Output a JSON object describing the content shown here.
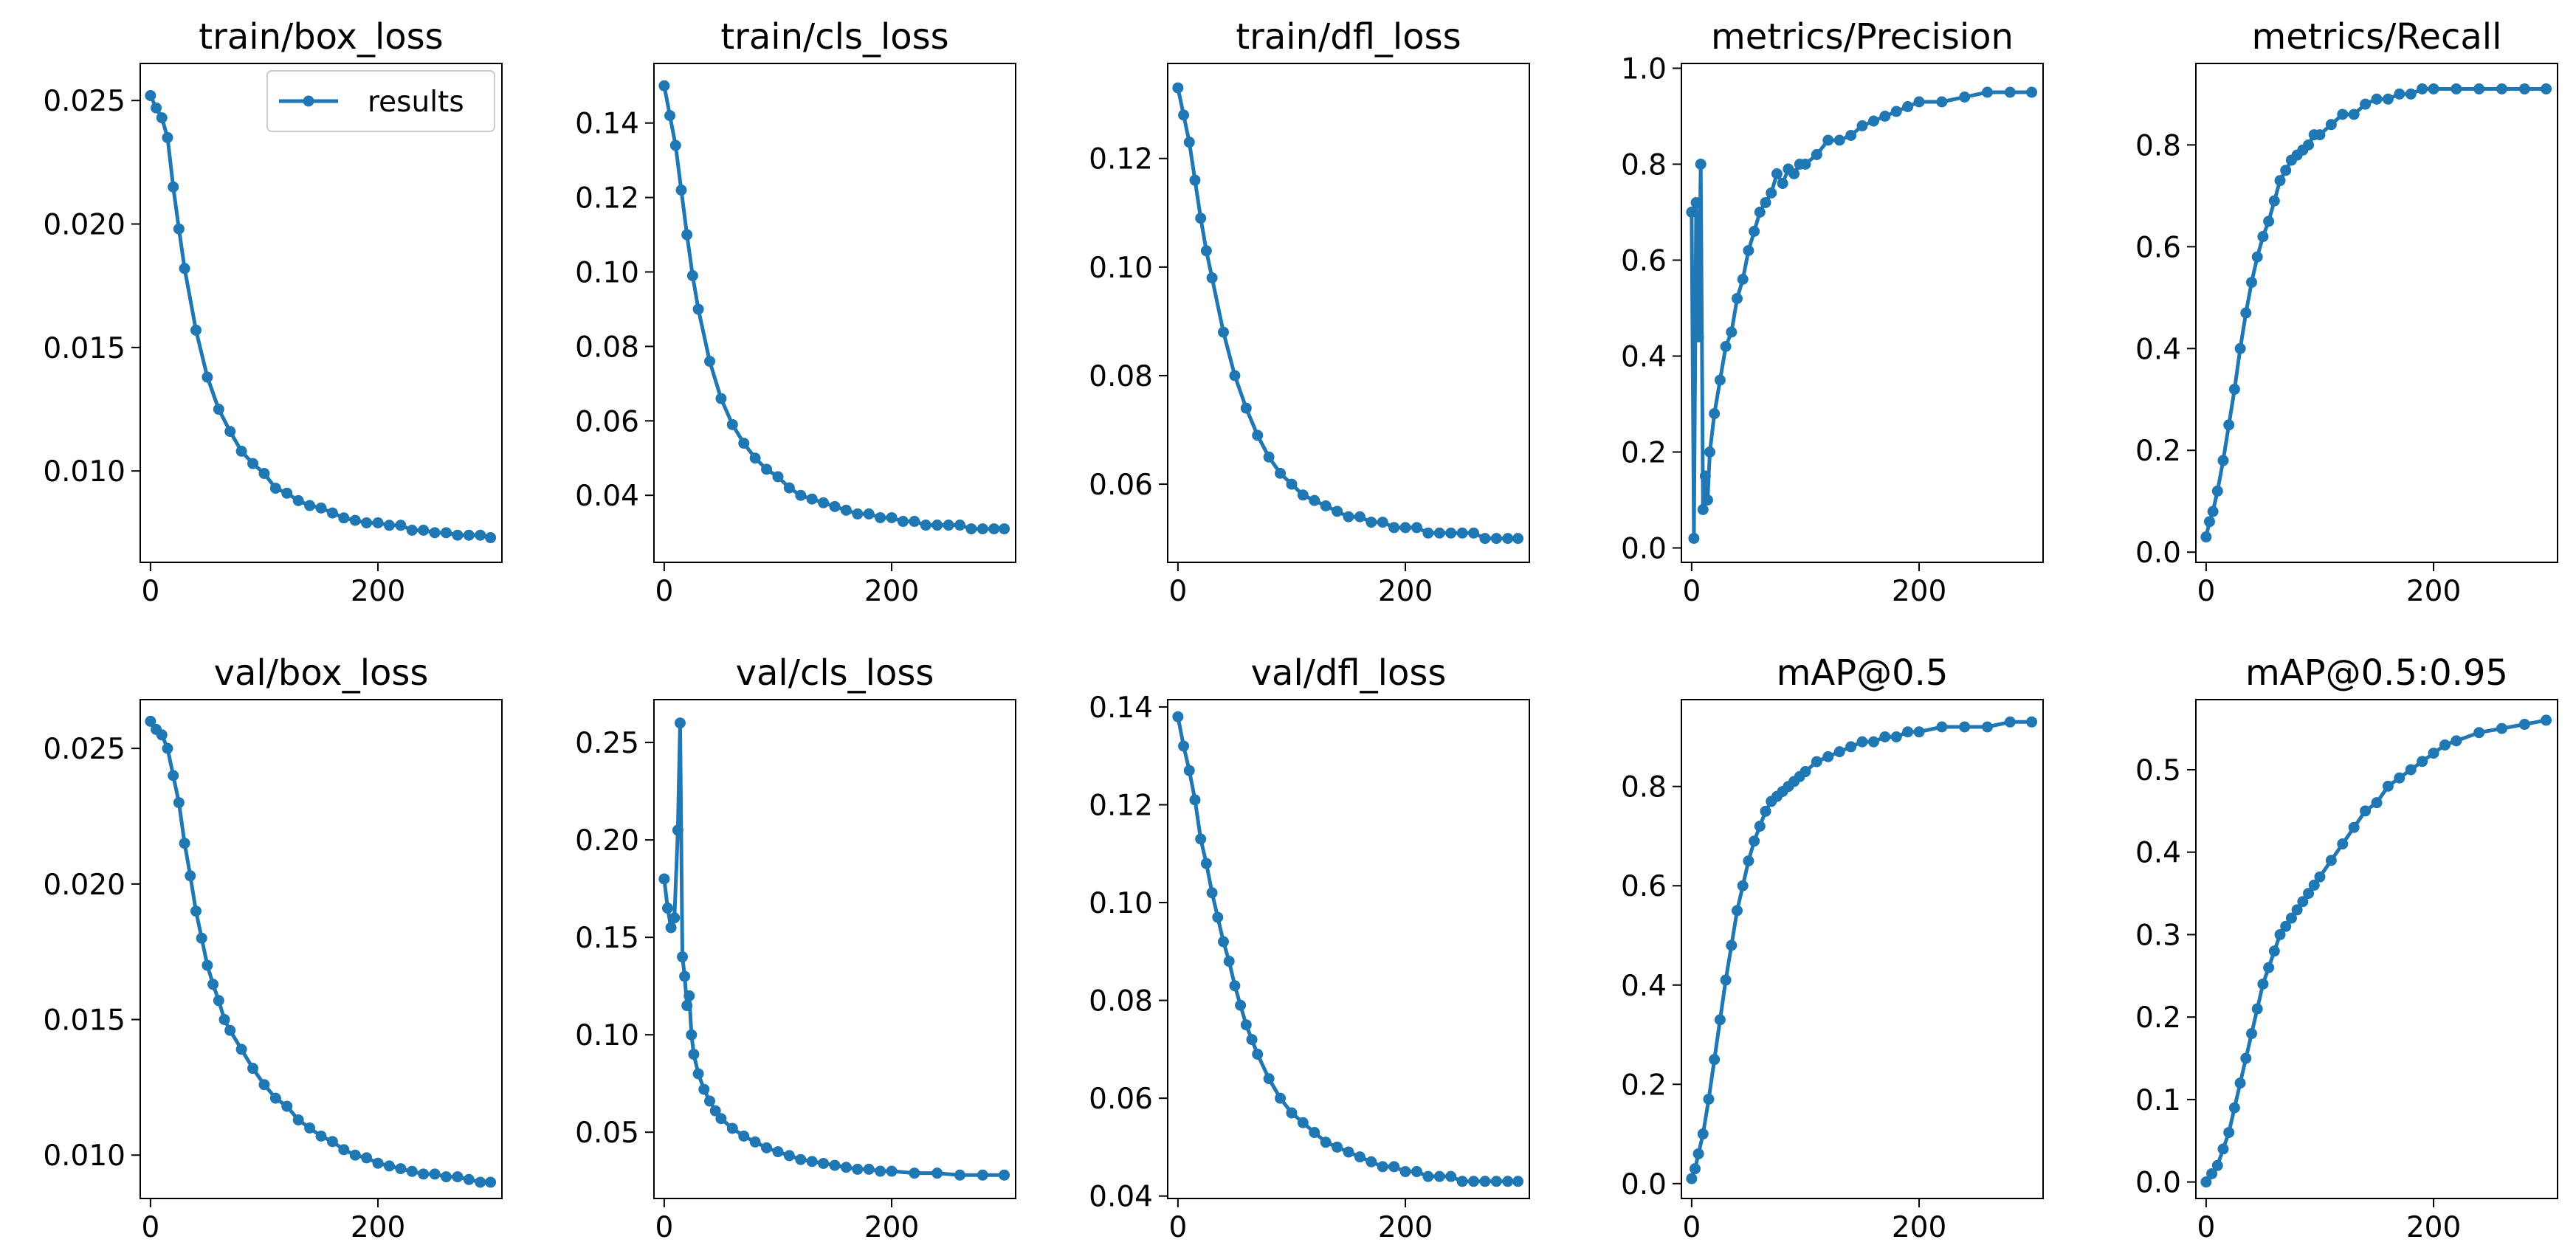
{
  "figure": {
    "series_color": "#1f77b4",
    "legend_label": "results",
    "x_domain": [
      -9,
      309
    ],
    "x_ticks": [
      0,
      200
    ]
  },
  "chart_data": [
    {
      "type": "line",
      "title": "train/box_loss",
      "ylim": [
        0.0063,
        0.0265
      ],
      "yticks": [
        0.01,
        0.015,
        0.02,
        0.025
      ],
      "ytick_labels": [
        "0.010",
        "0.015",
        "0.020",
        "0.025"
      ],
      "legend": "top-right",
      "series": [
        {
          "name": "results",
          "x": [
            0,
            5,
            10,
            15,
            20,
            25,
            30,
            40,
            50,
            60,
            70,
            80,
            90,
            100,
            110,
            120,
            130,
            140,
            150,
            160,
            170,
            180,
            190,
            200,
            210,
            220,
            230,
            240,
            250,
            260,
            270,
            280,
            290,
            299
          ],
          "y": [
            0.0252,
            0.0247,
            0.0243,
            0.0235,
            0.0215,
            0.0198,
            0.0182,
            0.0157,
            0.0138,
            0.0125,
            0.0116,
            0.0108,
            0.0103,
            0.0099,
            0.0093,
            0.0091,
            0.0088,
            0.0086,
            0.0085,
            0.0083,
            0.0081,
            0.008,
            0.0079,
            0.0079,
            0.0078,
            0.0078,
            0.0076,
            0.0076,
            0.0075,
            0.0075,
            0.0074,
            0.0074,
            0.0074,
            0.0073
          ]
        }
      ]
    },
    {
      "type": "line",
      "title": "train/cls_loss",
      "ylim": [
        0.022,
        0.156
      ],
      "yticks": [
        0.04,
        0.06,
        0.08,
        0.1,
        0.12,
        0.14
      ],
      "ytick_labels": [
        "0.04",
        "0.06",
        "0.08",
        "0.10",
        "0.12",
        "0.14"
      ],
      "series": [
        {
          "x": [
            0,
            5,
            10,
            15,
            20,
            25,
            30,
            40,
            50,
            60,
            70,
            80,
            90,
            100,
            110,
            120,
            130,
            140,
            150,
            160,
            170,
            180,
            190,
            200,
            210,
            220,
            230,
            240,
            250,
            260,
            270,
            280,
            290,
            299
          ],
          "y": [
            0.15,
            0.142,
            0.134,
            0.122,
            0.11,
            0.099,
            0.09,
            0.076,
            0.066,
            0.059,
            0.054,
            0.05,
            0.047,
            0.045,
            0.042,
            0.04,
            0.039,
            0.038,
            0.037,
            0.036,
            0.035,
            0.035,
            0.034,
            0.034,
            0.033,
            0.033,
            0.032,
            0.032,
            0.032,
            0.032,
            0.031,
            0.031,
            0.031,
            0.031
          ]
        }
      ]
    },
    {
      "type": "line",
      "title": "train/dfl_loss",
      "ylim": [
        0.0456,
        0.1375
      ],
      "yticks": [
        0.06,
        0.08,
        0.1,
        0.12
      ],
      "ytick_labels": [
        "0.06",
        "0.08",
        "0.10",
        "0.12"
      ],
      "series": [
        {
          "x": [
            0,
            5,
            10,
            15,
            20,
            25,
            30,
            40,
            50,
            60,
            70,
            80,
            90,
            100,
            110,
            120,
            130,
            140,
            150,
            160,
            170,
            180,
            190,
            200,
            210,
            220,
            230,
            240,
            250,
            260,
            270,
            280,
            290,
            299
          ],
          "y": [
            0.133,
            0.128,
            0.123,
            0.116,
            0.109,
            0.103,
            0.098,
            0.088,
            0.08,
            0.074,
            0.069,
            0.065,
            0.062,
            0.06,
            0.058,
            0.057,
            0.056,
            0.055,
            0.054,
            0.054,
            0.053,
            0.053,
            0.052,
            0.052,
            0.052,
            0.051,
            0.051,
            0.051,
            0.051,
            0.051,
            0.05,
            0.05,
            0.05,
            0.05
          ]
        }
      ]
    },
    {
      "type": "line",
      "title": "metrics/Precision",
      "ylim": [
        -0.03,
        1.01
      ],
      "yticks": [
        0.0,
        0.2,
        0.4,
        0.6,
        0.8,
        1.0
      ],
      "ytick_labels": [
        "0.0",
        "0.2",
        "0.4",
        "0.6",
        "0.8",
        "1.0"
      ],
      "series": [
        {
          "x": [
            0,
            2,
            4,
            6,
            8,
            10,
            12,
            14,
            16,
            20,
            25,
            30,
            35,
            40,
            45,
            50,
            55,
            60,
            65,
            70,
            75,
            80,
            85,
            90,
            95,
            100,
            110,
            120,
            130,
            140,
            150,
            160,
            170,
            180,
            190,
            200,
            220,
            240,
            260,
            280,
            299
          ],
          "y": [
            0.7,
            0.02,
            0.72,
            0.44,
            0.8,
            0.08,
            0.15,
            0.1,
            0.2,
            0.28,
            0.35,
            0.42,
            0.45,
            0.52,
            0.56,
            0.62,
            0.66,
            0.7,
            0.72,
            0.74,
            0.78,
            0.76,
            0.79,
            0.78,
            0.8,
            0.8,
            0.82,
            0.85,
            0.85,
            0.86,
            0.88,
            0.89,
            0.9,
            0.91,
            0.92,
            0.93,
            0.93,
            0.94,
            0.95,
            0.95,
            0.95
          ]
        }
      ]
    },
    {
      "type": "line",
      "title": "metrics/Recall",
      "ylim": [
        -0.02,
        0.96
      ],
      "yticks": [
        0.0,
        0.2,
        0.4,
        0.6,
        0.8
      ],
      "ytick_labels": [
        "0.0",
        "0.2",
        "0.4",
        "0.6",
        "0.8"
      ],
      "series": [
        {
          "x": [
            0,
            3,
            6,
            10,
            15,
            20,
            25,
            30,
            35,
            40,
            45,
            50,
            55,
            60,
            65,
            70,
            75,
            80,
            85,
            90,
            95,
            100,
            110,
            120,
            130,
            140,
            150,
            160,
            170,
            180,
            190,
            200,
            220,
            240,
            260,
            280,
            299
          ],
          "y": [
            0.03,
            0.06,
            0.08,
            0.12,
            0.18,
            0.25,
            0.32,
            0.4,
            0.47,
            0.53,
            0.58,
            0.62,
            0.65,
            0.69,
            0.73,
            0.75,
            0.77,
            0.78,
            0.79,
            0.8,
            0.82,
            0.82,
            0.84,
            0.86,
            0.86,
            0.88,
            0.89,
            0.89,
            0.9,
            0.9,
            0.91,
            0.91,
            0.91,
            0.91,
            0.91,
            0.91,
            0.91
          ]
        }
      ]
    },
    {
      "type": "line",
      "title": "val/box_loss",
      "ylim": [
        0.0084,
        0.0268
      ],
      "yticks": [
        0.01,
        0.015,
        0.02,
        0.025
      ],
      "ytick_labels": [
        "0.010",
        "0.015",
        "0.020",
        "0.025"
      ],
      "series": [
        {
          "x": [
            0,
            5,
            10,
            15,
            20,
            25,
            30,
            35,
            40,
            45,
            50,
            55,
            60,
            65,
            70,
            80,
            90,
            100,
            110,
            120,
            130,
            140,
            150,
            160,
            170,
            180,
            190,
            200,
            210,
            220,
            230,
            240,
            250,
            260,
            270,
            280,
            290,
            299
          ],
          "y": [
            0.026,
            0.0257,
            0.0255,
            0.025,
            0.024,
            0.023,
            0.0215,
            0.0203,
            0.019,
            0.018,
            0.017,
            0.0163,
            0.0157,
            0.015,
            0.0146,
            0.0139,
            0.0132,
            0.0126,
            0.0121,
            0.0118,
            0.0113,
            0.011,
            0.0107,
            0.0105,
            0.0102,
            0.01,
            0.0099,
            0.0097,
            0.0096,
            0.0095,
            0.0094,
            0.0093,
            0.0093,
            0.0092,
            0.0092,
            0.0091,
            0.009,
            0.009
          ]
        }
      ]
    },
    {
      "type": "line",
      "title": "val/cls_loss",
      "ylim": [
        0.016,
        0.272
      ],
      "yticks": [
        0.05,
        0.1,
        0.15,
        0.2,
        0.25
      ],
      "ytick_labels": [
        "0.05",
        "0.10",
        "0.15",
        "0.20",
        "0.25"
      ],
      "series": [
        {
          "x": [
            0,
            3,
            6,
            9,
            12,
            14,
            16,
            18,
            20,
            22,
            24,
            26,
            30,
            35,
            40,
            45,
            50,
            60,
            70,
            80,
            90,
            100,
            110,
            120,
            130,
            140,
            150,
            160,
            170,
            180,
            190,
            200,
            220,
            240,
            260,
            280,
            299
          ],
          "y": [
            0.18,
            0.165,
            0.155,
            0.16,
            0.205,
            0.26,
            0.14,
            0.13,
            0.115,
            0.12,
            0.1,
            0.09,
            0.08,
            0.072,
            0.066,
            0.061,
            0.057,
            0.052,
            0.048,
            0.045,
            0.042,
            0.04,
            0.038,
            0.036,
            0.035,
            0.034,
            0.033,
            0.032,
            0.031,
            0.031,
            0.03,
            0.03,
            0.029,
            0.029,
            0.028,
            0.028,
            0.028
          ]
        }
      ]
    },
    {
      "type": "line",
      "title": "val/dfl_loss",
      "ylim": [
        0.0395,
        0.1415
      ],
      "yticks": [
        0.04,
        0.06,
        0.08,
        0.1,
        0.12,
        0.14
      ],
      "ytick_labels": [
        "0.04",
        "0.06",
        "0.08",
        "0.10",
        "0.12",
        "0.14"
      ],
      "series": [
        {
          "x": [
            0,
            5,
            10,
            15,
            20,
            25,
            30,
            35,
            40,
            45,
            50,
            55,
            60,
            65,
            70,
            80,
            90,
            100,
            110,
            120,
            130,
            140,
            150,
            160,
            170,
            180,
            190,
            200,
            210,
            220,
            230,
            240,
            250,
            260,
            270,
            280,
            290,
            299
          ],
          "y": [
            0.138,
            0.132,
            0.127,
            0.121,
            0.113,
            0.108,
            0.102,
            0.097,
            0.092,
            0.088,
            0.083,
            0.079,
            0.075,
            0.072,
            0.069,
            0.064,
            0.06,
            0.057,
            0.055,
            0.053,
            0.051,
            0.05,
            0.049,
            0.048,
            0.047,
            0.046,
            0.046,
            0.045,
            0.045,
            0.044,
            0.044,
            0.044,
            0.043,
            0.043,
            0.043,
            0.043,
            0.043,
            0.043
          ]
        }
      ]
    },
    {
      "type": "line",
      "title": "mAP@0.5",
      "ylim": [
        -0.03,
        0.975
      ],
      "yticks": [
        0.0,
        0.2,
        0.4,
        0.6,
        0.8
      ],
      "ytick_labels": [
        "0.0",
        "0.2",
        "0.4",
        "0.6",
        "0.8"
      ],
      "series": [
        {
          "x": [
            0,
            3,
            6,
            10,
            15,
            20,
            25,
            30,
            35,
            40,
            45,
            50,
            55,
            60,
            65,
            70,
            75,
            80,
            85,
            90,
            95,
            100,
            110,
            120,
            130,
            140,
            150,
            160,
            170,
            180,
            190,
            200,
            220,
            240,
            260,
            280,
            299
          ],
          "y": [
            0.01,
            0.03,
            0.06,
            0.1,
            0.17,
            0.25,
            0.33,
            0.41,
            0.48,
            0.55,
            0.6,
            0.65,
            0.69,
            0.72,
            0.75,
            0.77,
            0.78,
            0.79,
            0.8,
            0.81,
            0.82,
            0.83,
            0.85,
            0.86,
            0.87,
            0.88,
            0.89,
            0.89,
            0.9,
            0.9,
            0.91,
            0.91,
            0.92,
            0.92,
            0.92,
            0.93,
            0.93
          ]
        }
      ]
    },
    {
      "type": "line",
      "title": "mAP@0.5:0.95",
      "ylim": [
        -0.02,
        0.585
      ],
      "yticks": [
        0.0,
        0.1,
        0.2,
        0.3,
        0.4,
        0.5
      ],
      "ytick_labels": [
        "0.0",
        "0.1",
        "0.2",
        "0.3",
        "0.4",
        "0.5"
      ],
      "series": [
        {
          "x": [
            0,
            5,
            10,
            15,
            20,
            25,
            30,
            35,
            40,
            45,
            50,
            55,
            60,
            65,
            70,
            75,
            80,
            85,
            90,
            95,
            100,
            110,
            120,
            130,
            140,
            150,
            160,
            170,
            180,
            190,
            200,
            210,
            220,
            240,
            260,
            280,
            299
          ],
          "y": [
            0.0,
            0.01,
            0.02,
            0.04,
            0.06,
            0.09,
            0.12,
            0.15,
            0.18,
            0.21,
            0.24,
            0.26,
            0.28,
            0.3,
            0.31,
            0.32,
            0.33,
            0.34,
            0.35,
            0.36,
            0.37,
            0.39,
            0.41,
            0.43,
            0.45,
            0.46,
            0.48,
            0.49,
            0.5,
            0.51,
            0.52,
            0.53,
            0.535,
            0.545,
            0.55,
            0.555,
            0.56
          ]
        }
      ]
    }
  ]
}
